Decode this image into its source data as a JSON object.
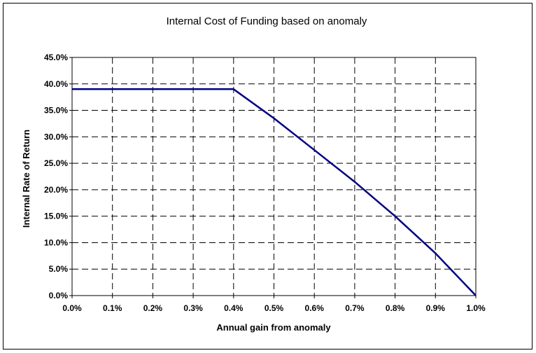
{
  "chart_data": {
    "type": "line",
    "title": "Internal Cost of Funding based on anomaly",
    "xlabel": "Annual gain from anomaly",
    "ylabel": "Internal Rate of Return",
    "x_ticks": [
      "0.0%",
      "0.1%",
      "0.2%",
      "0.3%",
      "0.4%",
      "0.5%",
      "0.6%",
      "0.7%",
      "0.8%",
      "0.9%",
      "1.0%"
    ],
    "y_ticks": [
      "0.0%",
      "5.0%",
      "10.0%",
      "15.0%",
      "20.0%",
      "25.0%",
      "30.0%",
      "35.0%",
      "40.0%",
      "45.0%"
    ],
    "xlim": [
      0.0,
      1.0
    ],
    "ylim": [
      0.0,
      45.0
    ],
    "grid": true,
    "grid_style": "dashed",
    "line_color": "#000080",
    "series": [
      {
        "x": [
          0.0,
          0.1,
          0.2,
          0.3,
          0.4,
          0.5,
          0.6,
          0.7,
          0.8,
          0.9,
          1.0
        ],
        "values": [
          39.0,
          39.0,
          39.0,
          39.0,
          39.0,
          33.5,
          27.5,
          21.5,
          15.0,
          8.0,
          0.0
        ]
      }
    ]
  }
}
